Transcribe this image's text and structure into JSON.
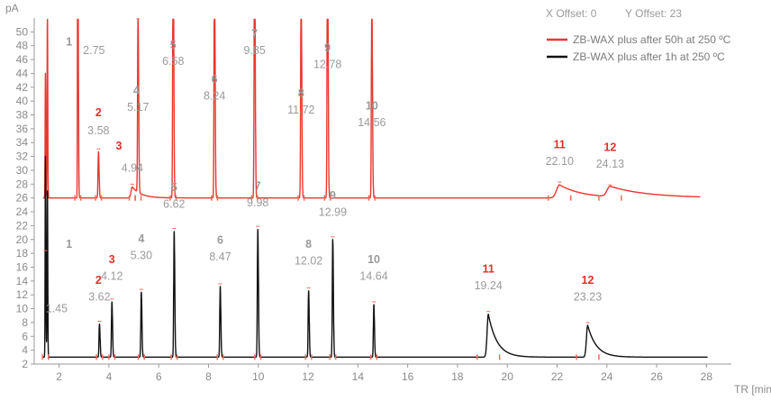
{
  "chart_data": {
    "type": "line",
    "ylabel": "pA",
    "xlabel": "TR [min]",
    "xlim": [
      1.0,
      29.0
    ],
    "ylim": [
      2.0,
      52.0
    ],
    "x_ticks": [
      2,
      4,
      6,
      8,
      10,
      12,
      14,
      16,
      18,
      20,
      22,
      24,
      26,
      28
    ],
    "y_ticks": [
      2,
      4,
      6,
      8,
      10,
      12,
      14,
      16,
      18,
      20,
      22,
      24,
      26,
      28,
      30,
      32,
      34,
      36,
      38,
      40,
      42,
      44,
      46,
      48,
      50
    ],
    "offsets": {
      "x_label": "X Offset: 0",
      "y_label": "Y Offset: 23",
      "x": 0,
      "y": 23
    },
    "grid": false,
    "legend_position": "top-right",
    "colors": {
      "after_50h": "#e8382e",
      "after_1h": "#111111",
      "highlight_label": "#e0302a",
      "gray_label": "#9a9a9a",
      "marker": "#f06a5a"
    },
    "series": [
      {
        "name": "ZB-WAX plus after 50h at 250 ºC",
        "offset": 23,
        "baseline": 3.0,
        "peaks": [
          {
            "num": "1",
            "rt": "2.75",
            "x": 2.75,
            "h": 49.0,
            "highlight": false
          },
          {
            "num": "2",
            "rt": "3.58",
            "x": 3.58,
            "h": 9.7,
            "highlight": true
          },
          {
            "num": "3",
            "rt": "4.94",
            "x": 4.94,
            "h": 4.6,
            "highlight": true
          },
          {
            "num": "4",
            "rt": "5.17",
            "x": 5.17,
            "h": 28.5,
            "highlight": false
          },
          {
            "num": "5",
            "rt": "6.58",
            "x": 6.58,
            "h": 41.5,
            "highlight": false
          },
          {
            "num": "6",
            "rt": "8.24",
            "x": 8.24,
            "h": 36.5,
            "highlight": false
          },
          {
            "num": "7",
            "rt": "9.85",
            "x": 9.85,
            "h": 43.2,
            "highlight": false
          },
          {
            "num": "8",
            "rt": "11.72",
            "x": 11.72,
            "h": 34.5,
            "highlight": false
          },
          {
            "num": "9",
            "rt": "12.78",
            "x": 12.78,
            "h": 41.2,
            "highlight": false
          },
          {
            "num": "10",
            "rt": "14.56",
            "x": 14.56,
            "h": 32.8,
            "highlight": false
          },
          {
            "num": "11",
            "rt": "22.10",
            "x": 22.1,
            "h": 4.9,
            "highlight": true
          },
          {
            "num": "12",
            "rt": "24.13",
            "x": 24.13,
            "h": 4.5,
            "highlight": true
          }
        ]
      },
      {
        "name": "ZB-WAX plus after 1h at 250 ºC",
        "offset": 0,
        "baseline": 3.0,
        "peaks": [
          {
            "num": "1",
            "rt": "1.45",
            "x": 1.45,
            "h": 18.0,
            "highlight": false
          },
          {
            "num": "2",
            "rt": "3.62",
            "x": 3.62,
            "h": 7.8,
            "highlight": true
          },
          {
            "num": "3",
            "rt": "4.12",
            "x": 4.12,
            "h": 11.0,
            "highlight": true
          },
          {
            "num": "4",
            "rt": "5.30",
            "x": 5.3,
            "h": 12.4,
            "highlight": false
          },
          {
            "num": "5",
            "rt": "6.62",
            "x": 6.62,
            "h": 21.2,
            "highlight": false
          },
          {
            "num": "6",
            "rt": "8.47",
            "x": 8.47,
            "h": 13.2,
            "highlight": false
          },
          {
            "num": "7",
            "rt": "9.98",
            "x": 9.98,
            "h": 21.5,
            "highlight": false
          },
          {
            "num": "8",
            "rt": "12.02",
            "x": 12.02,
            "h": 12.6,
            "highlight": false
          },
          {
            "num": "9",
            "rt": "12.99",
            "x": 12.99,
            "h": 20.0,
            "highlight": false
          },
          {
            "num": "10",
            "rt": "14.64",
            "x": 14.64,
            "h": 10.6,
            "highlight": false
          },
          {
            "num": "11",
            "rt": "19.24",
            "x": 19.24,
            "h": 9.2,
            "highlight": true
          },
          {
            "num": "12",
            "rt": "23.23",
            "x": 23.23,
            "h": 7.6,
            "highlight": true
          }
        ]
      }
    ]
  }
}
